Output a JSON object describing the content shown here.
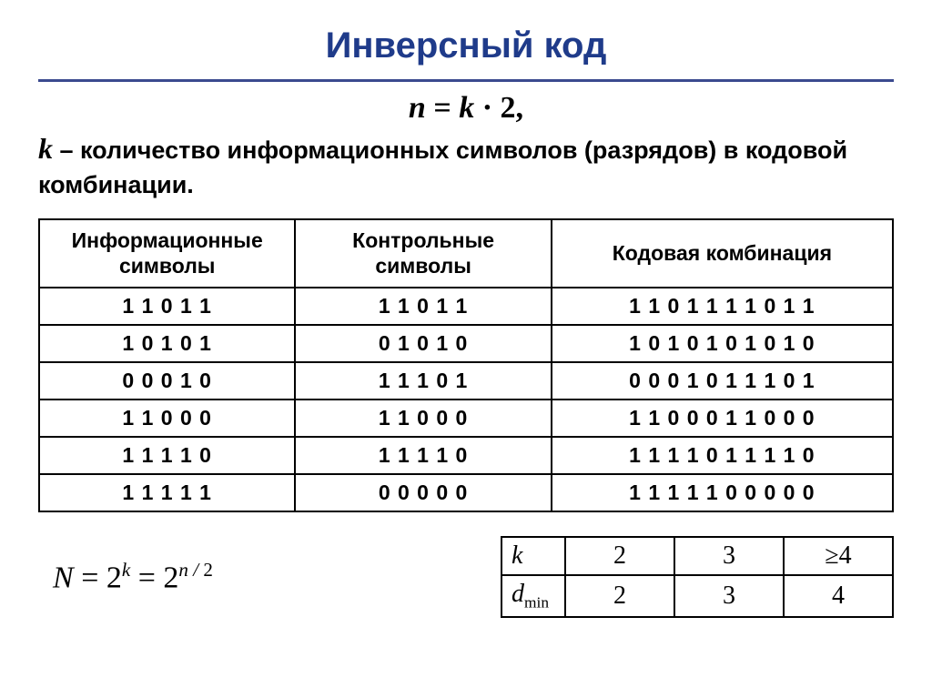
{
  "title": "Инверсный код",
  "formula_top": "n = k · 2,",
  "description_k": "k",
  "description_text": " – количество информационных символов (разрядов) в кодовой комбинации.",
  "main_table": {
    "headers": [
      "Информационные символы",
      "Контрольные символы",
      "Кодовая комбинация"
    ],
    "rows": [
      [
        "1 1 0 1 1",
        "1 1 0 1 1",
        "1 1 0 1 1 1 1 0 1 1"
      ],
      [
        "1 0 1 0 1",
        "0 1 0 1 0",
        "1 0 1 0 1 0 1 0 1 0"
      ],
      [
        "0 0 0 1 0",
        "1 1 1 0 1",
        "0 0 0 1 0 1 1 1 0 1"
      ],
      [
        "1 1 0 0 0",
        "1 1 0 0 0",
        "1 1 0 0 0 1 1 0 0 0"
      ],
      [
        "1 1 1 1 0",
        "1 1 1 1 0",
        "1 1 1 1 0 1 1 1 1 0"
      ],
      [
        "1 1 1 1 1",
        "0 0 0 0 0",
        "1 1 1 1 1 0 0 0 0 0"
      ]
    ]
  },
  "formula_bottom_html": "N = 2<sup>k</sup> = 2<sup>n / 2</sup>",
  "small_table": {
    "row1_label": "k",
    "row1": [
      "2",
      "3",
      "≥4"
    ],
    "row2_label_html": "d<sub>min</sub>",
    "row2": [
      "2",
      "3",
      "4"
    ]
  },
  "colors": {
    "title": "#1f3b8a",
    "rule": "#3b4a8f",
    "border": "#000000",
    "text": "#000000",
    "background": "#ffffff"
  }
}
